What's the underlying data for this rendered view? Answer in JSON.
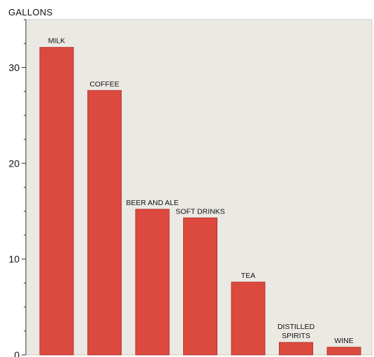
{
  "chart_data": {
    "type": "bar",
    "ylabel": "GALLONS",
    "categories": [
      [
        "MILK"
      ],
      [
        "COFFEE"
      ],
      [
        "BEER AND ALE"
      ],
      [
        "SOFT DRINKS"
      ],
      [
        "TEA"
      ],
      [
        "DISTILLED",
        "SPIRITS"
      ],
      [
        "WINE"
      ]
    ],
    "values": [
      32.1,
      27.6,
      15.2,
      14.3,
      7.6,
      1.3,
      0.8
    ],
    "ylim": [
      0,
      35
    ],
    "yticks": [
      "0",
      "10",
      "20",
      "30"
    ],
    "ytick_values": [
      0,
      10,
      20,
      30
    ],
    "grid": false,
    "colors": {
      "bar": "#dc4a3f",
      "bar_stroke": "#b9352c",
      "plot_bg": "#ebe9e3",
      "axis": "#333333",
      "text": "#111111"
    }
  }
}
